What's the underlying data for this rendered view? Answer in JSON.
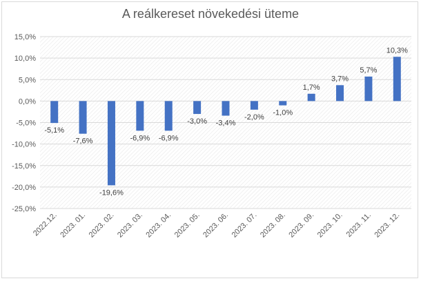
{
  "chart_data": {
    "type": "bar",
    "title": "A reálkereset növekedési üteme",
    "categories": [
      "2022.12.",
      "2023. 01.",
      "2023. 02.",
      "2023. 03.",
      "2023. 04.",
      "2023. 05.",
      "2023. 06.",
      "2023. 07.",
      "2023. 08.",
      "2023. 09.",
      "2023. 10.",
      "2023. 11.",
      "2023. 12."
    ],
    "values": [
      -5.1,
      -7.6,
      -19.6,
      -6.9,
      -6.9,
      -3.0,
      -3.4,
      -2.0,
      -1.0,
      1.7,
      3.7,
      5.7,
      10.3
    ],
    "data_labels": [
      "-5,1%",
      "-7,6%",
      "-19,6%",
      "-6,9%",
      "-6,9%",
      "-3,0%",
      "-3,4%",
      "-2,0%",
      "-1,0%",
      "1,7%",
      "3,7%",
      "5,7%",
      "10,3%"
    ],
    "y_ticks": [
      15,
      10,
      5,
      0,
      -5,
      -10,
      -15,
      -20,
      -25
    ],
    "y_tick_labels": [
      "15,0%",
      "10,0%",
      "5,0%",
      "0,0%",
      "-5,0%",
      "-10,0%",
      "-15,0%",
      "-20,0%",
      "-25,0%"
    ],
    "ylim": [
      -25,
      15
    ],
    "grid": true,
    "legend": "none",
    "colors": {
      "bar": "#4472c4",
      "grid": "#d9d9d9",
      "plot_hatch": "#ececec",
      "text": "#595959"
    }
  }
}
